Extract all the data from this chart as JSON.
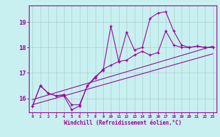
{
  "title": "",
  "xlabel": "Windchill (Refroidissement éolien,°C)",
  "ylabel": "",
  "background_color": "#c8f0f0",
  "grid_color": "#aacccc",
  "line_color": "#990099",
  "x_ticks": [
    0,
    1,
    2,
    3,
    4,
    5,
    6,
    7,
    8,
    9,
    10,
    11,
    12,
    13,
    14,
    15,
    16,
    17,
    18,
    19,
    20,
    21,
    22,
    23
  ],
  "y_ticks": [
    16,
    17,
    18,
    19
  ],
  "xlim": [
    -0.5,
    23.5
  ],
  "ylim": [
    15.45,
    19.65
  ],
  "series1_x": [
    0,
    1,
    2,
    3,
    4,
    5,
    6,
    7,
    8,
    9,
    10,
    11,
    12,
    13,
    14,
    15,
    16,
    17,
    18,
    19,
    20,
    21,
    22,
    23
  ],
  "series1_y": [
    15.7,
    16.5,
    16.2,
    16.1,
    16.1,
    15.55,
    15.7,
    16.5,
    16.85,
    17.1,
    18.85,
    17.45,
    18.6,
    17.9,
    18.0,
    19.15,
    19.35,
    19.4,
    18.65,
    18.1,
    18.0,
    18.05,
    18.0,
    18.0
  ],
  "series2_x": [
    0,
    1,
    2,
    3,
    4,
    5,
    6,
    7,
    8,
    9,
    10,
    11,
    12,
    13,
    14,
    15,
    16,
    17,
    18,
    19,
    20,
    21,
    22,
    23
  ],
  "series2_y": [
    15.7,
    16.5,
    16.2,
    16.1,
    16.15,
    15.75,
    15.75,
    16.5,
    16.8,
    17.15,
    17.3,
    17.45,
    17.5,
    17.7,
    17.85,
    17.7,
    17.8,
    18.65,
    18.1,
    18.0,
    18.0,
    18.05,
    18.0,
    18.0
  ],
  "trend1_x": [
    0,
    23
  ],
  "trend1_y": [
    15.95,
    18.05
  ],
  "trend2_x": [
    0,
    23
  ],
  "trend2_y": [
    15.75,
    17.75
  ]
}
